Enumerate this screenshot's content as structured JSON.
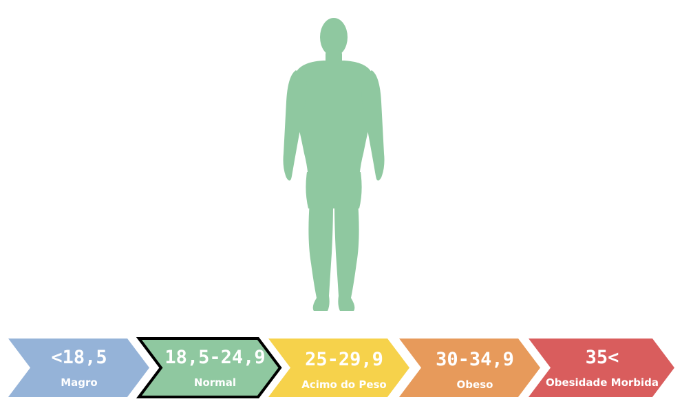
{
  "figure": {
    "icon": "human-body-icon",
    "color": "#8fc8a0"
  },
  "categories": [
    {
      "range": "<18,5",
      "label": "Magro",
      "color": "#95b3d8",
      "selected": false
    },
    {
      "range": "18,5-24,9",
      "label": "Normal",
      "color": "#8fc8a0",
      "selected": true
    },
    {
      "range": "25-29,9",
      "label": "Acimo do Peso",
      "color": "#f6d24b",
      "selected": false
    },
    {
      "range": "30-34,9",
      "label": "Obeso",
      "color": "#e79a5b",
      "selected": false
    },
    {
      "range": "35<",
      "label": "Obesidade Morbida",
      "color": "#d95d5d",
      "selected": false
    }
  ]
}
